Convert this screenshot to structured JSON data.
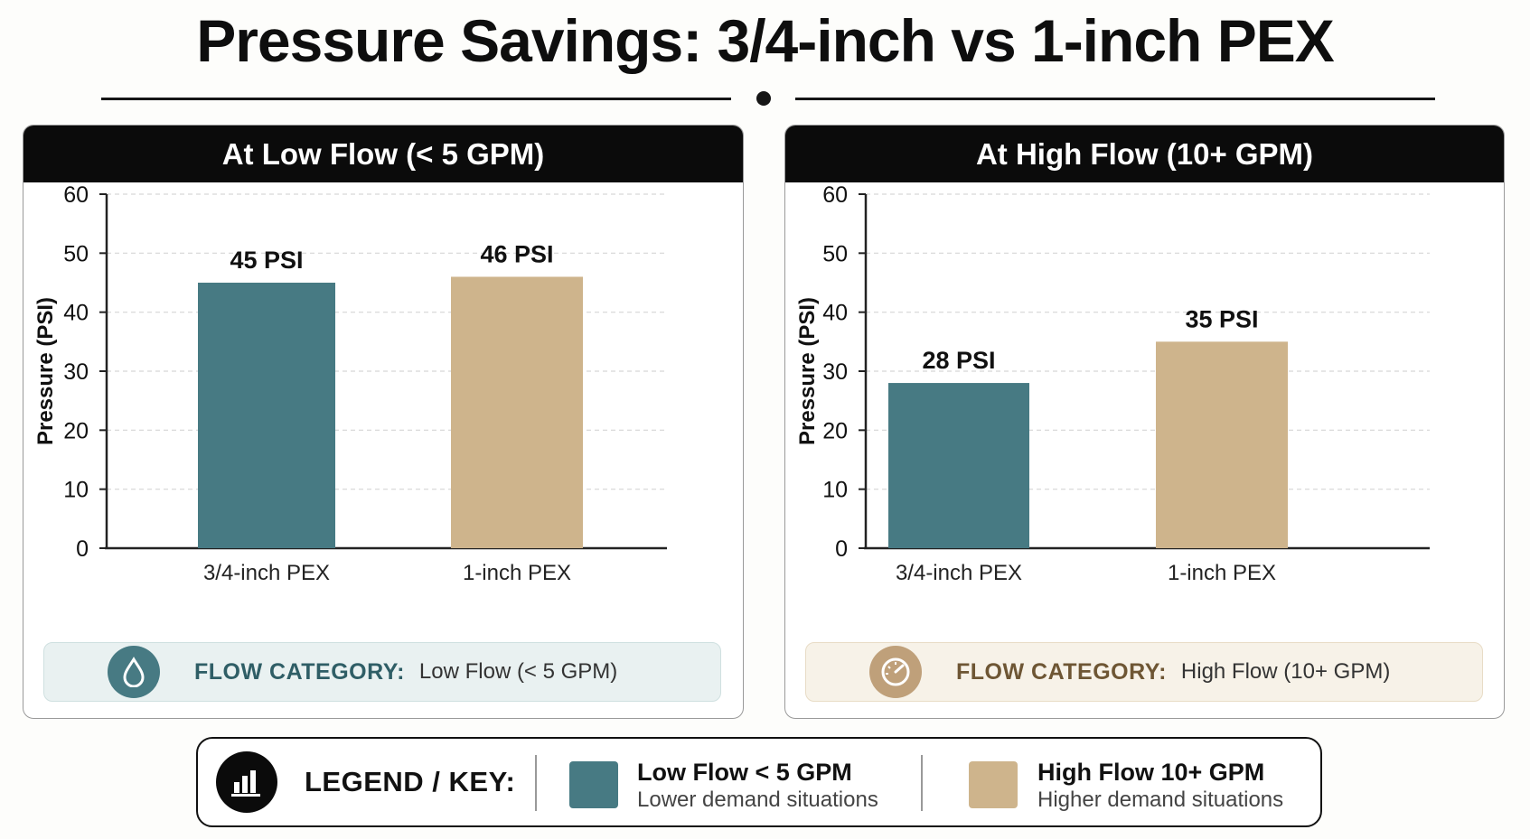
{
  "title": "Pressure Savings: 3/4-inch vs 1-inch PEX",
  "colors": {
    "teal": "#477a83",
    "tan": "#ceb48c",
    "header": "#0b0b0b",
    "grid": "#d6d6d6"
  },
  "chart_data": [
    {
      "type": "bar",
      "title": "At Low Flow (< 5 GPM)",
      "ylabel": "Pressure (PSI)",
      "xlabel": "",
      "categories": [
        "3/4-inch PEX",
        "1-inch PEX"
      ],
      "values": [
        45,
        46
      ],
      "data_labels": [
        "45 PSI",
        "46 PSI"
      ],
      "bar_colors": [
        "#477a83",
        "#ceb48c"
      ],
      "ylim": [
        0,
        60
      ],
      "yticks": [
        0,
        10,
        20,
        30,
        40,
        50,
        60
      ],
      "grid": true
    },
    {
      "type": "bar",
      "title": "At High Flow (10+ GPM)",
      "ylabel": "Pressure (PSI)",
      "xlabel": "",
      "categories": [
        "3/4-inch PEX",
        "1-inch PEX"
      ],
      "values": [
        28,
        35
      ],
      "data_labels": [
        "28 PSI",
        "35 PSI"
      ],
      "bar_colors": [
        "#477a83",
        "#ceb48c"
      ],
      "ylim": [
        0,
        60
      ],
      "yticks": [
        0,
        10,
        20,
        30,
        40,
        50,
        60
      ],
      "grid": true
    }
  ],
  "panels": {
    "low": {
      "category_label": "FLOW CATEGORY:",
      "category_value": "Low Flow (< 5 GPM)",
      "icon": "water-drop-icon"
    },
    "high": {
      "category_label": "FLOW CATEGORY:",
      "category_value": "High Flow (10+ GPM)",
      "icon": "speedometer-icon"
    }
  },
  "legend": {
    "title": "LEGEND / KEY:",
    "icon": "bar-chart-icon",
    "items": [
      {
        "name": "Low Flow < 5 GPM",
        "description": "Lower demand situations",
        "color": "#477a83"
      },
      {
        "name": "High Flow 10+ GPM",
        "description": "Higher demand situations",
        "color": "#ceb48c"
      }
    ]
  }
}
